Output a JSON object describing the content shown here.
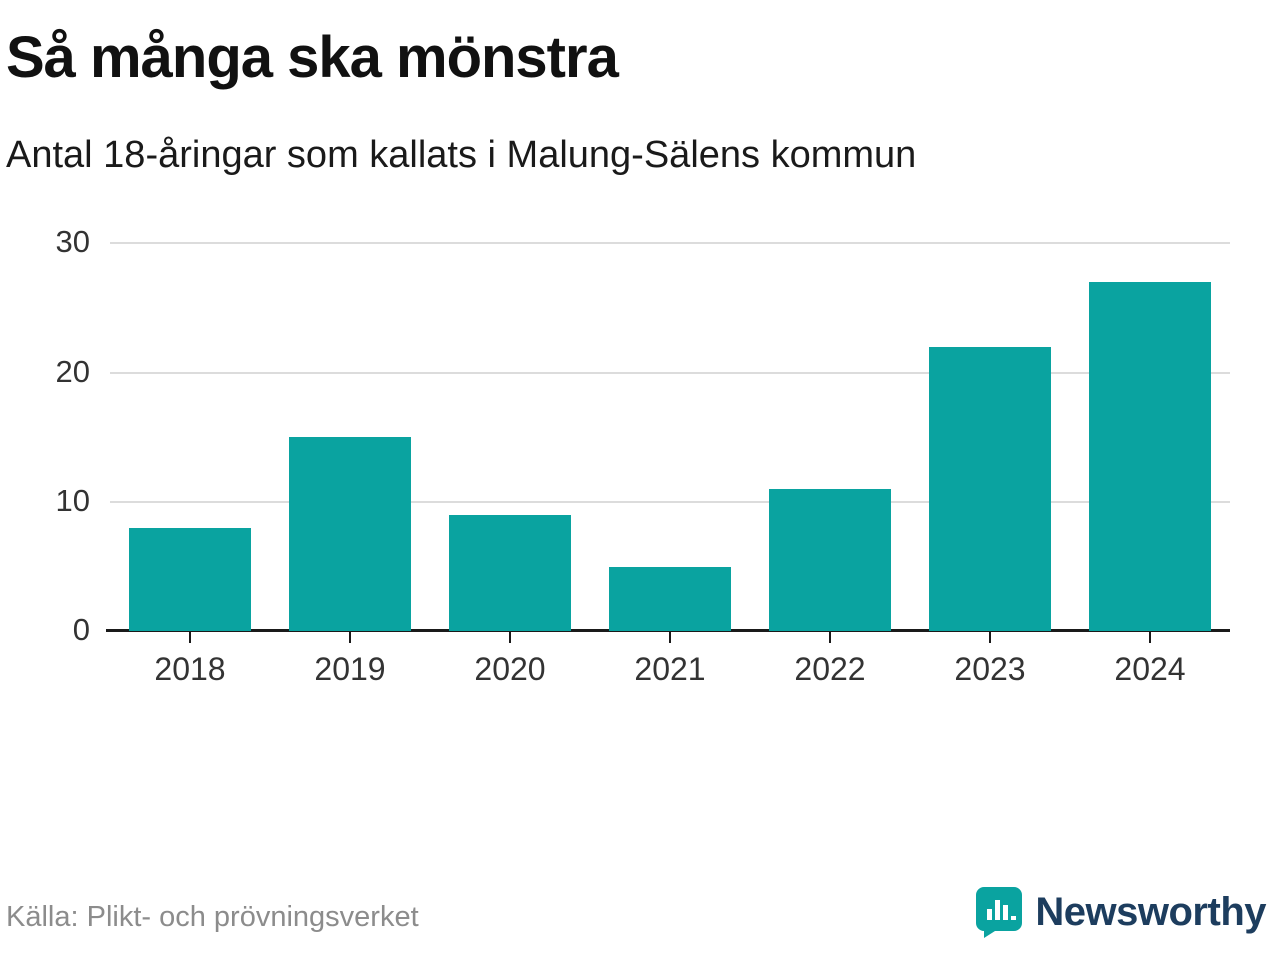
{
  "title": "Så många ska mönstra",
  "subtitle": "Antal 18-åringar som kallats i Malung-Sälens kommun",
  "source": "Källa: Plikt- och prövningsverket",
  "brand": {
    "name": "Newsworthy",
    "icon": "bar-chart-speech-bubble-icon"
  },
  "colors": {
    "bar": "#0aa3a0",
    "axis": "#1a1a1a",
    "grid": "#dcdcdc",
    "tick_text": "#333333",
    "source_text": "#8c8c8c",
    "brand_text": "#1d3d5e",
    "brand_icon": "#0aa3a0"
  },
  "chart_data": {
    "type": "bar",
    "categories": [
      "2018",
      "2019",
      "2020",
      "2021",
      "2022",
      "2023",
      "2024"
    ],
    "values": [
      8,
      15,
      9,
      5,
      11,
      22,
      27
    ],
    "title": "Så många ska mönstra",
    "subtitle": "Antal 18-åringar som kallats i Malung-Sälens kommun",
    "xlabel": "",
    "ylabel": "",
    "ylim": [
      0,
      30
    ],
    "yticks": [
      0,
      10,
      20,
      30
    ],
    "grid": true,
    "legend": false,
    "bar_color": "#0aa3a0"
  }
}
